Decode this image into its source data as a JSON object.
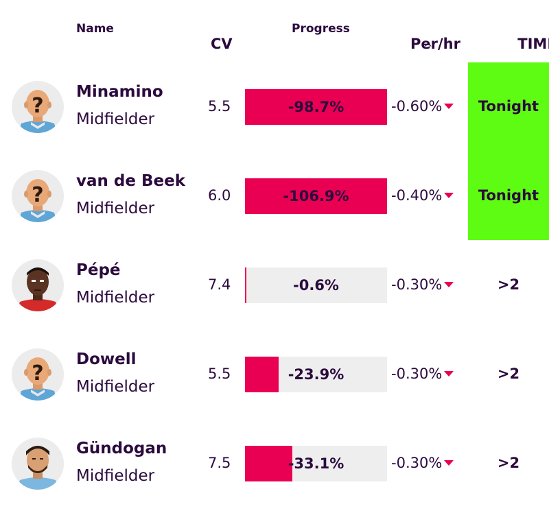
{
  "header": {
    "name": "Name",
    "cv": "CV",
    "progress": "Progress",
    "per_hr": "Per/hr",
    "time": "TIME",
    "sort_indicator": "^"
  },
  "colors": {
    "accent": "#e90052",
    "highlight": "#5dfc12",
    "bar_bg": "#eeeeee",
    "text": "#2b0a3d"
  },
  "players": [
    {
      "name": "Minamino",
      "position": "Midfielder",
      "cv": "5.5",
      "progress": "-98.7%",
      "progress_fill": 1.0,
      "per_hr": "-0.60%",
      "time": "Tonight",
      "highlight": true,
      "avatar": "unknown-player-icon"
    },
    {
      "name": "van de Beek",
      "position": "Midfielder",
      "cv": "6.0",
      "progress": "-106.9%",
      "progress_fill": 1.0,
      "per_hr": "-0.40%",
      "time": "Tonight",
      "highlight": true,
      "avatar": "unknown-player-icon"
    },
    {
      "name": "Pépé",
      "position": "Midfielder",
      "cv": "7.4",
      "progress": "-0.6%",
      "progress_fill": 0.006,
      "per_hr": "-0.30%",
      "time": ">2",
      "highlight": false,
      "avatar": "player-portrait-icon"
    },
    {
      "name": "Dowell",
      "position": "Midfielder",
      "cv": "5.5",
      "progress": "-23.9%",
      "progress_fill": 0.239,
      "per_hr": "-0.30%",
      "time": ">2",
      "highlight": false,
      "avatar": "unknown-player-icon"
    },
    {
      "name": "Gündogan",
      "position": "Midfielder",
      "cv": "7.5",
      "progress": "-33.1%",
      "progress_fill": 0.331,
      "per_hr": "-0.30%",
      "time": ">2",
      "highlight": false,
      "avatar": "player-portrait-icon"
    }
  ]
}
